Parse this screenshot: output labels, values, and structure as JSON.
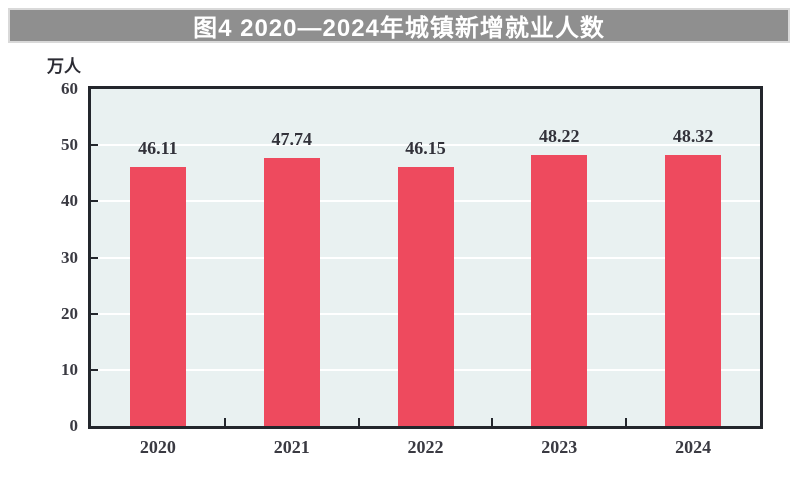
{
  "banner": {
    "title": "图4 2020—2024年城镇新增就业人数",
    "bg_color": "#8f8f8f",
    "text_color": "#ffffff"
  },
  "chart_data": {
    "type": "bar",
    "title": "图4 2020—2024年城镇新增就业人数",
    "ylabel": "万人",
    "xlabel": "",
    "categories": [
      "2020",
      "2021",
      "2022",
      "2023",
      "2024"
    ],
    "values": [
      46.11,
      47.74,
      46.15,
      48.22,
      48.32
    ],
    "data_labels": [
      "46.11",
      "47.74",
      "46.15",
      "48.22",
      "48.32"
    ],
    "ylim": [
      0,
      60
    ],
    "yticks": [
      0,
      10,
      20,
      30,
      40,
      50,
      60
    ],
    "grid": true,
    "legend": false,
    "bar_color": "#ee4a5e",
    "plot_bg_color": "#e9f1f1",
    "grid_color": "#ffffff",
    "axis_color": "#23262c",
    "label_color": "#32323a"
  }
}
